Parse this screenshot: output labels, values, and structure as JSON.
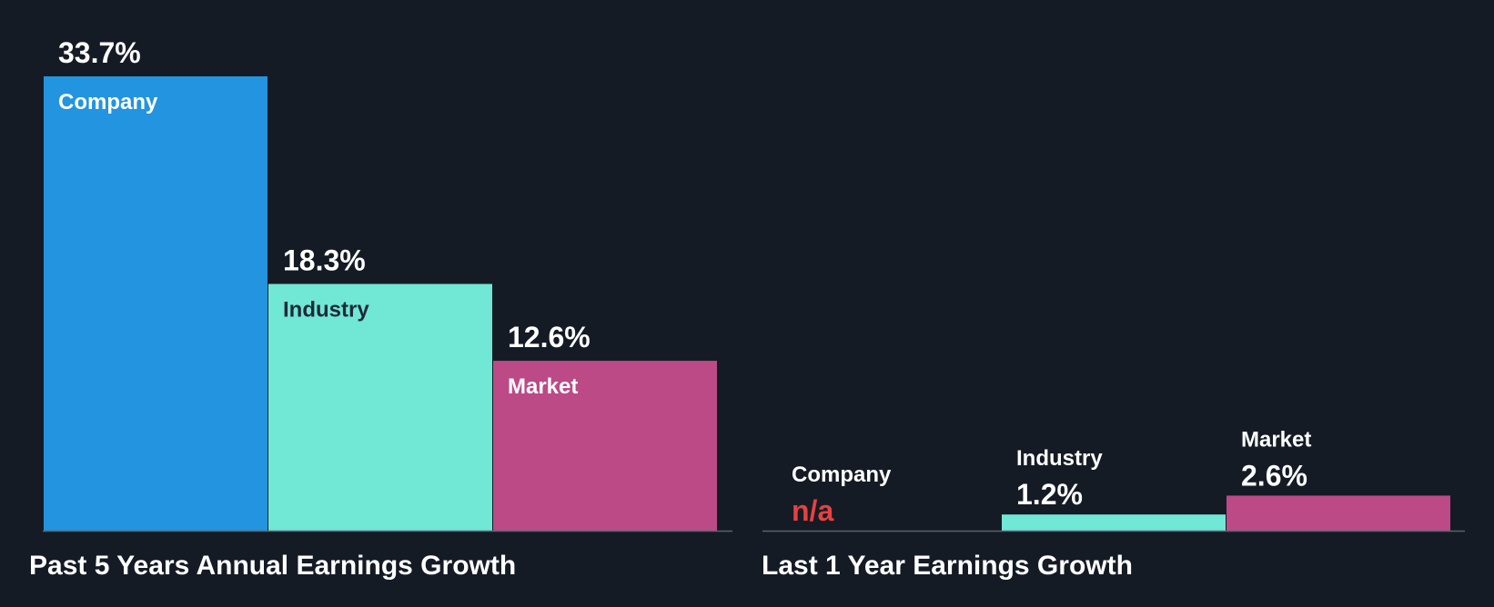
{
  "chart_data": [
    {
      "type": "bar",
      "title": "Past 5 Years Annual Earnings Growth",
      "categories": [
        "Company",
        "Industry",
        "Market"
      ],
      "values": [
        33.7,
        18.3,
        12.6
      ],
      "value_labels": [
        "33.7%",
        "18.3%",
        "12.6%"
      ],
      "colors": [
        "#2394df",
        "#71e7d6",
        "#bb4a87"
      ],
      "ylim": [
        0,
        33.7
      ],
      "grid": false,
      "legend": "none"
    },
    {
      "type": "bar",
      "title": "Last 1 Year Earnings Growth",
      "categories": [
        "Company",
        "Industry",
        "Market"
      ],
      "values": [
        null,
        1.2,
        2.6
      ],
      "value_labels": [
        "n/a",
        "1.2%",
        "2.6%"
      ],
      "colors": [
        "#2394df",
        "#71e7d6",
        "#bb4a87"
      ],
      "na_color": "#e64141",
      "ylim": [
        0,
        33.7
      ],
      "grid": false,
      "legend": "none"
    }
  ]
}
